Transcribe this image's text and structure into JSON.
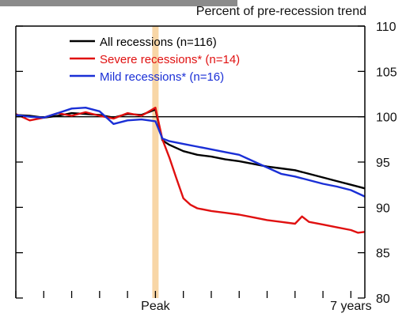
{
  "chart_data": {
    "type": "line",
    "title": "",
    "ylabel": "Percent of pre-recession trend",
    "xlabel": "",
    "ylim": [
      80,
      110
    ],
    "y_ticks": [
      80,
      85,
      90,
      95,
      100,
      105,
      110
    ],
    "x_tick_labels": [
      {
        "x": 0,
        "label": "Peak"
      },
      {
        "x": 7,
        "label": "7 years"
      }
    ],
    "xlim": [
      -5,
      7.5
    ],
    "reference_line": 100,
    "peak_marker_x": 0,
    "legend_position": "top-left",
    "series": [
      {
        "name": "All recessions (n=116)",
        "color": "#000000",
        "x": [
          -5,
          -4.5,
          -4,
          -3.5,
          -3,
          -2.5,
          -2,
          -1.5,
          -1,
          -0.5,
          0,
          0.25,
          0.5,
          1,
          1.5,
          2,
          2.5,
          3,
          3.5,
          4,
          4.5,
          5,
          5.5,
          6,
          6.5,
          7,
          7.5
        ],
        "values": [
          100.2,
          100.1,
          99.9,
          100.1,
          100.4,
          100.3,
          100.2,
          99.9,
          100.3,
          100.2,
          100.8,
          97.4,
          96.9,
          96.2,
          95.8,
          95.6,
          95.3,
          95.1,
          94.8,
          94.5,
          94.3,
          94.1,
          93.7,
          93.3,
          92.9,
          92.5,
          92.1
        ]
      },
      {
        "name": "Severe recessions* (n=14)",
        "color": "#e01010",
        "x": [
          -5,
          -4.5,
          -4,
          -3.5,
          -3,
          -2.5,
          -2,
          -1.5,
          -1,
          -0.5,
          0,
          0.25,
          0.5,
          0.75,
          1,
          1.25,
          1.5,
          2,
          2.5,
          3,
          3.5,
          4,
          4.5,
          5,
          5.25,
          5.5,
          6,
          6.5,
          7,
          7.25,
          7.5
        ],
        "values": [
          100.3,
          99.6,
          99.9,
          100.4,
          100.1,
          100.5,
          100.1,
          99.8,
          100.4,
          100.1,
          101.0,
          97.5,
          95.5,
          93.2,
          91.0,
          90.3,
          89.9,
          89.6,
          89.4,
          89.2,
          88.9,
          88.6,
          88.4,
          88.2,
          89.0,
          88.4,
          88.1,
          87.8,
          87.5,
          87.2,
          87.3
        ]
      },
      {
        "name": "Mild recessions* (n=16)",
        "color": "#1a2fd6",
        "x": [
          -5,
          -4.5,
          -4,
          -3.5,
          -3,
          -2.5,
          -2,
          -1.5,
          -1,
          -0.5,
          0,
          0.25,
          0.5,
          1,
          1.5,
          2,
          2.5,
          3,
          3.5,
          4,
          4.5,
          5,
          5.5,
          6,
          6.5,
          7,
          7.5
        ],
        "values": [
          100.2,
          100.0,
          99.9,
          100.4,
          100.9,
          101.0,
          100.6,
          99.2,
          99.6,
          99.7,
          99.5,
          97.6,
          97.3,
          97.0,
          96.7,
          96.4,
          96.1,
          95.8,
          95.1,
          94.4,
          93.7,
          93.4,
          93.0,
          92.6,
          92.3,
          91.9,
          91.2
        ]
      }
    ]
  }
}
